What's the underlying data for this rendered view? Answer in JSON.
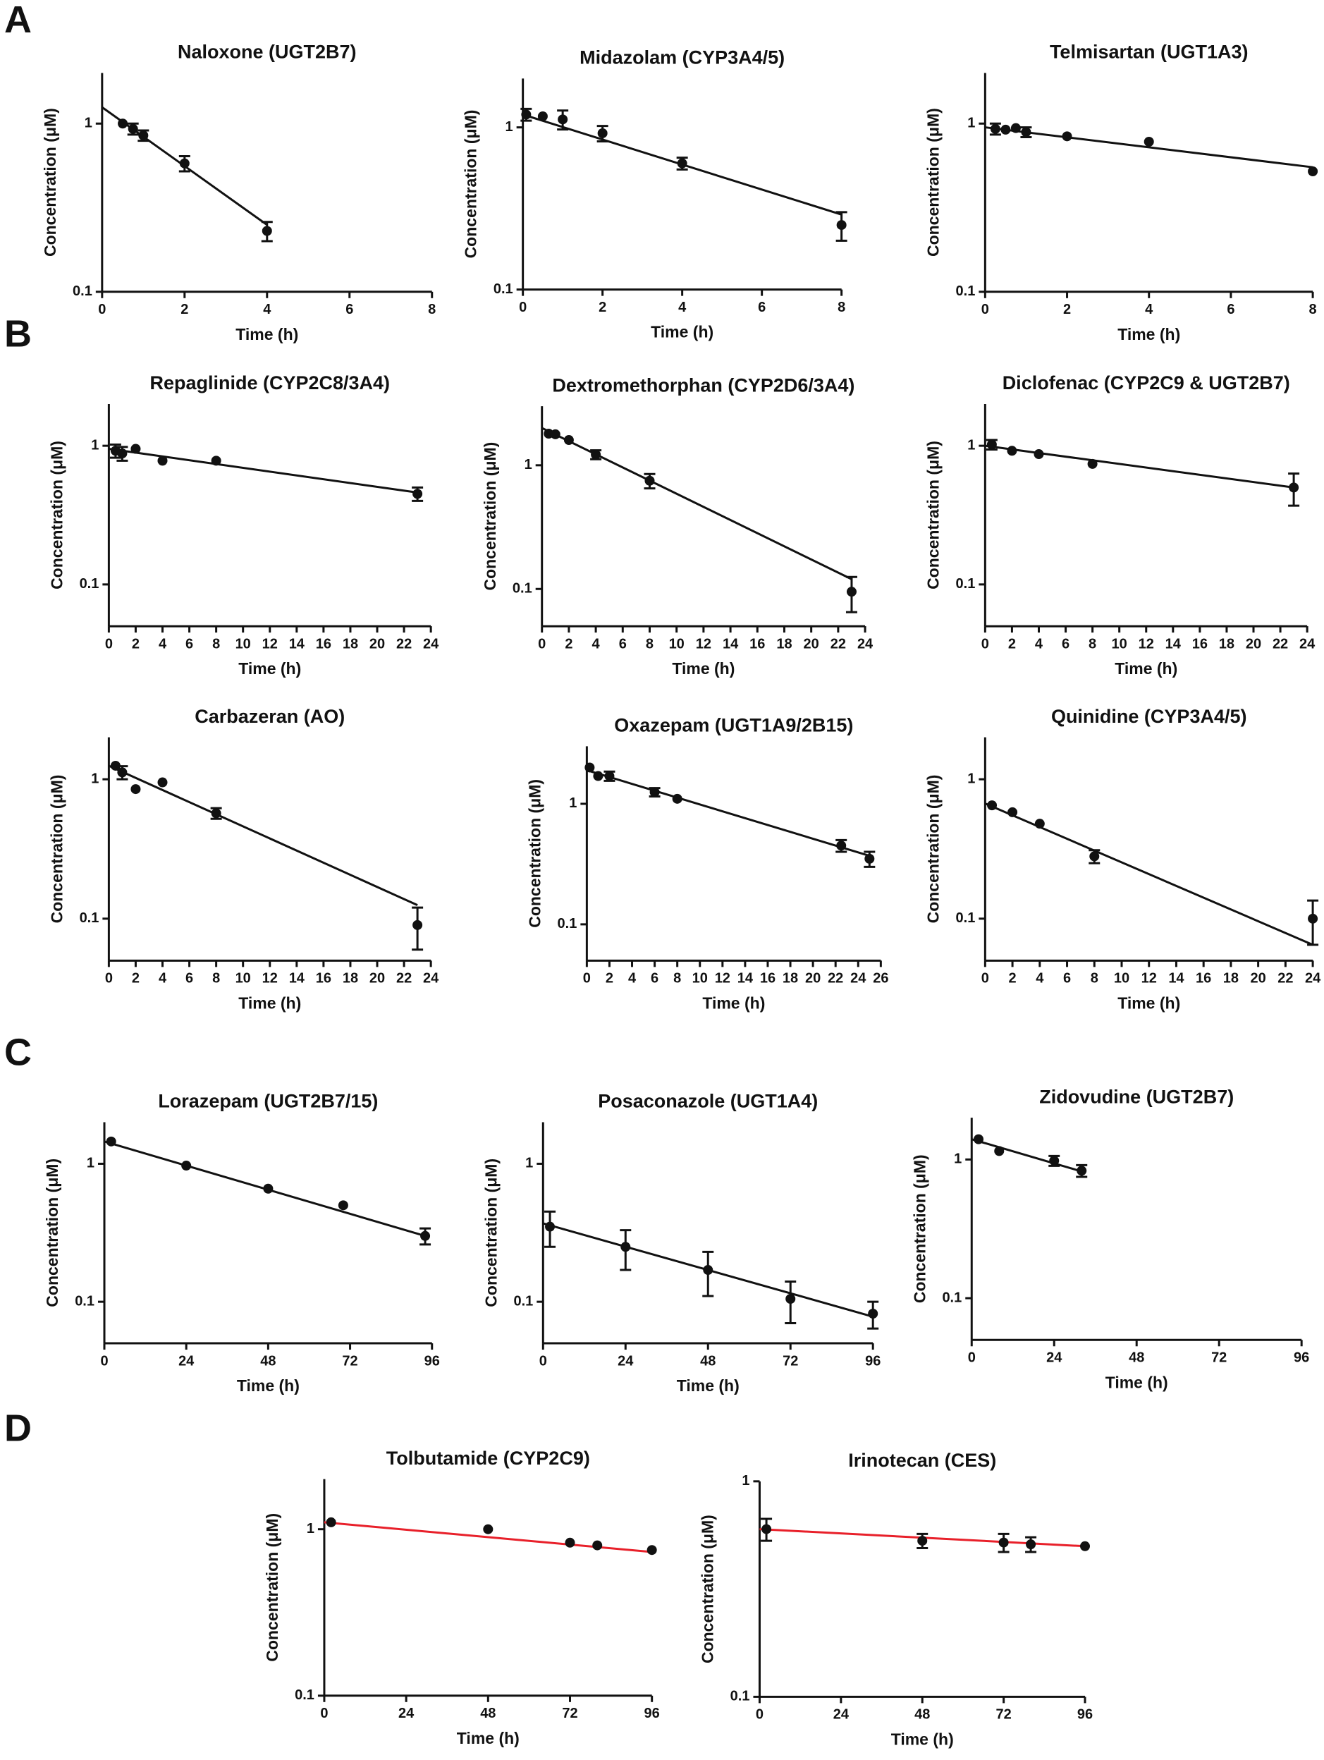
{
  "panel_labels": [
    "A",
    "B",
    "C",
    "D"
  ],
  "chart_data": [
    {
      "type": "scatter",
      "title": "Naloxone (UGT2B7)",
      "x_label": "Time (h)",
      "y_label": "Concentration (μM)",
      "y_scale": "log",
      "xlim": [
        0,
        8
      ],
      "xticks": [
        0,
        2,
        4,
        6,
        8
      ],
      "ylim": [
        0.1,
        2
      ],
      "yticks": [
        0.1,
        1
      ],
      "points": {
        "x": [
          0.5,
          0.75,
          1,
          2,
          4
        ],
        "values": [
          1.0,
          0.93,
          0.85,
          0.58,
          0.23
        ],
        "errors": [
          null,
          0.07,
          0.06,
          0.06,
          0.03
        ],
        "color": "#111111"
      },
      "fit": {
        "x": [
          0,
          4
        ],
        "values": [
          1.25,
          0.25
        ],
        "color": "#111111"
      }
    },
    {
      "type": "scatter",
      "title": "Midazolam (CYP3A4/5)",
      "x_label": "Time (h)",
      "y_label": "Concentration (μM)",
      "y_scale": "log",
      "xlim": [
        0,
        8
      ],
      "xticks": [
        0,
        2,
        4,
        6,
        8
      ],
      "ylim": [
        0.1,
        2
      ],
      "yticks": [
        0.1,
        1
      ],
      "points": {
        "x": [
          0.083,
          0.5,
          1,
          2,
          4,
          8
        ],
        "values": [
          1.2,
          1.17,
          1.12,
          0.92,
          0.6,
          0.25
        ],
        "errors": [
          0.1,
          null,
          0.15,
          0.1,
          0.05,
          0.05
        ],
        "color": "#111111"
      },
      "fit": {
        "x": [
          0,
          8
        ],
        "values": [
          1.2,
          0.29
        ],
        "color": "#111111"
      }
    },
    {
      "type": "scatter",
      "title": "Telmisartan (UGT1A3)",
      "x_label": "Time (h)",
      "y_label": "Concentration (μM)",
      "y_scale": "log",
      "xlim": [
        0,
        8
      ],
      "xticks": [
        0,
        2,
        4,
        6,
        8
      ],
      "ylim": [
        0.1,
        2
      ],
      "yticks": [
        0.1,
        1
      ],
      "points": {
        "x": [
          0.25,
          0.5,
          0.75,
          1,
          2,
          4,
          8
        ],
        "values": [
          0.93,
          0.92,
          0.94,
          0.89,
          0.84,
          0.78,
          0.52
        ],
        "errors": [
          0.07,
          null,
          null,
          0.06,
          null,
          null,
          null
        ],
        "color": "#111111"
      },
      "fit": {
        "x": [
          0,
          8
        ],
        "values": [
          0.95,
          0.55
        ],
        "color": "#111111"
      }
    },
    {
      "type": "scatter",
      "title": "Repaglinide (CYP2C8/3A4)",
      "x_label": "Time (h)",
      "y_label": "Concentration (μM)",
      "y_scale": "log",
      "xlim": [
        0,
        24
      ],
      "xticks": [
        0,
        2,
        4,
        6,
        8,
        10,
        12,
        14,
        16,
        18,
        20,
        22,
        24
      ],
      "ylim": [
        0.05,
        2
      ],
      "yticks": [
        0.1,
        1
      ],
      "points": {
        "x": [
          0.5,
          1,
          2,
          4,
          8,
          23
        ],
        "values": [
          0.92,
          0.88,
          0.95,
          0.78,
          0.78,
          0.45
        ],
        "errors": [
          0.1,
          0.1,
          null,
          null,
          null,
          0.05
        ],
        "color": "#111111"
      },
      "fit": {
        "x": [
          0,
          23
        ],
        "values": [
          0.95,
          0.46
        ],
        "color": "#111111"
      }
    },
    {
      "type": "scatter",
      "title": "Dextromethorphan (CYP2D6/3A4)",
      "x_label": "Time (h)",
      "y_label": "Concentration (μM)",
      "y_scale": "log",
      "xlim": [
        0,
        24
      ],
      "xticks": [
        0,
        2,
        4,
        6,
        8,
        10,
        12,
        14,
        16,
        18,
        20,
        22,
        24
      ],
      "ylim": [
        0.05,
        3
      ],
      "yticks": [
        0.1,
        1
      ],
      "points": {
        "x": [
          0.5,
          1,
          2,
          4,
          8,
          23
        ],
        "values": [
          1.8,
          1.78,
          1.6,
          1.22,
          0.75,
          0.095
        ],
        "errors": [
          null,
          null,
          null,
          0.1,
          0.1,
          0.03
        ],
        "color": "#111111"
      },
      "fit": {
        "x": [
          0,
          23
        ],
        "values": [
          2.0,
          0.12
        ],
        "color": "#111111"
      }
    },
    {
      "type": "scatter",
      "title": "Diclofenac (CYP2C9 & UGT2B7)",
      "x_label": "Time (h)",
      "y_label": "Concentration (μM)",
      "y_scale": "log",
      "xlim": [
        0,
        24
      ],
      "xticks": [
        0,
        2,
        4,
        6,
        8,
        10,
        12,
        14,
        16,
        18,
        20,
        22,
        24
      ],
      "ylim": [
        0.05,
        2
      ],
      "yticks": [
        0.1,
        1
      ],
      "points": {
        "x": [
          0.5,
          2,
          4,
          8,
          23
        ],
        "values": [
          1.02,
          0.92,
          0.87,
          0.74,
          0.5
        ],
        "errors": [
          0.08,
          null,
          null,
          null,
          0.13
        ],
        "color": "#111111"
      },
      "fit": {
        "x": [
          0,
          23
        ],
        "values": [
          1.0,
          0.5
        ],
        "color": "#111111"
      }
    },
    {
      "type": "scatter",
      "title": "Carbazeran (AO)",
      "x_label": "Time (h)",
      "y_label": "Concentration (μM)",
      "y_scale": "log",
      "xlim": [
        0,
        24
      ],
      "xticks": [
        0,
        2,
        4,
        6,
        8,
        10,
        12,
        14,
        16,
        18,
        20,
        22,
        24
      ],
      "ylim": [
        0.05,
        2
      ],
      "yticks": [
        0.1,
        1
      ],
      "points": {
        "x": [
          0.5,
          1,
          2,
          4,
          8,
          23
        ],
        "values": [
          1.25,
          1.12,
          0.85,
          0.95,
          0.57,
          0.09
        ],
        "errors": [
          null,
          0.12,
          null,
          null,
          0.05,
          0.03
        ],
        "color": "#111111"
      },
      "fit": {
        "x": [
          0,
          23
        ],
        "values": [
          1.25,
          0.125
        ],
        "color": "#111111"
      }
    },
    {
      "type": "scatter",
      "title": "Oxazepam (UGT1A9/2B15)",
      "x_label": "Time (h)",
      "y_label": "Concentration (μM)",
      "y_scale": "log",
      "xlim": [
        0,
        26
      ],
      "xticks": [
        0,
        2,
        4,
        6,
        8,
        10,
        12,
        14,
        16,
        18,
        20,
        22,
        24,
        26
      ],
      "ylim": [
        0.05,
        3
      ],
      "yticks": [
        0.1,
        1
      ],
      "points": {
        "x": [
          0.25,
          1,
          2,
          6,
          8,
          22.5,
          25
        ],
        "values": [
          2.0,
          1.7,
          1.7,
          1.25,
          1.1,
          0.45,
          0.35
        ],
        "errors": [
          null,
          null,
          0.15,
          0.1,
          null,
          0.05,
          0.05
        ],
        "color": "#111111"
      },
      "fit": {
        "x": [
          0,
          25
        ],
        "values": [
          1.9,
          0.37
        ],
        "color": "#111111"
      }
    },
    {
      "type": "scatter",
      "title": "Quinidine (CYP3A4/5)",
      "x_label": "Time (h)",
      "y_label": "Concentration (μM)",
      "y_scale": "log",
      "xlim": [
        0,
        24
      ],
      "xticks": [
        0,
        2,
        4,
        6,
        8,
        10,
        12,
        14,
        16,
        18,
        20,
        22,
        24
      ],
      "ylim": [
        0.05,
        2
      ],
      "yticks": [
        0.1,
        1
      ],
      "points": {
        "x": [
          0.5,
          2,
          4,
          8,
          24
        ],
        "values": [
          0.65,
          0.58,
          0.48,
          0.28,
          0.1
        ],
        "errors": [
          null,
          null,
          null,
          0.03,
          0.035
        ],
        "color": "#111111"
      },
      "fit": {
        "x": [
          0,
          24
        ],
        "values": [
          0.67,
          0.065
        ],
        "color": "#111111"
      }
    },
    {
      "type": "scatter",
      "title": "Lorazepam (UGT2B7/15)",
      "x_label": "Time (h)",
      "y_label": "Concentration (μM)",
      "y_scale": "log",
      "xlim": [
        0,
        96
      ],
      "xticks": [
        0,
        24,
        48,
        72,
        96
      ],
      "ylim": [
        0.05,
        2
      ],
      "yticks": [
        0.1,
        1
      ],
      "points": {
        "x": [
          2,
          24,
          48,
          70,
          94
        ],
        "values": [
          1.45,
          0.97,
          0.66,
          0.5,
          0.3
        ],
        "errors": [
          null,
          null,
          null,
          null,
          0.04
        ],
        "color": "#111111"
      },
      "fit": {
        "x": [
          0,
          94
        ],
        "values": [
          1.45,
          0.3
        ],
        "color": "#111111"
      }
    },
    {
      "type": "scatter",
      "title": "Posaconazole (UGT1A4)",
      "x_label": "Time (h)",
      "y_label": "Concentration (μM)",
      "y_scale": "log",
      "xlim": [
        0,
        96
      ],
      "xticks": [
        0,
        24,
        48,
        72,
        96
      ],
      "ylim": [
        0.05,
        2
      ],
      "yticks": [
        0.1,
        1
      ],
      "points": {
        "x": [
          2,
          24,
          48,
          72,
          96
        ],
        "values": [
          0.35,
          0.25,
          0.17,
          0.105,
          0.082
        ],
        "errors": [
          0.1,
          0.08,
          0.06,
          0.035,
          0.018
        ],
        "color": "#111111"
      },
      "fit": {
        "x": [
          0,
          96
        ],
        "values": [
          0.37,
          0.078
        ],
        "color": "#111111"
      }
    },
    {
      "type": "scatter",
      "title": "Zidovudine (UGT2B7)",
      "x_label": "Time (h)",
      "y_label": "Concentration (μM)",
      "y_scale": "log",
      "xlim": [
        0,
        96
      ],
      "xticks": [
        0,
        24,
        48,
        72,
        96
      ],
      "ylim": [
        0.05,
        2
      ],
      "yticks": [
        0.1,
        1
      ],
      "points": {
        "x": [
          2,
          8,
          24,
          32
        ],
        "values": [
          1.4,
          1.15,
          0.98,
          0.83
        ],
        "errors": [
          null,
          null,
          0.08,
          0.08
        ],
        "color": "#111111"
      },
      "fit": {
        "x": [
          0,
          32
        ],
        "values": [
          1.4,
          0.82
        ],
        "color": "#111111"
      }
    },
    {
      "type": "scatter",
      "title": "Tolbutamide (CYP2C9)",
      "x_label": "Time (h)",
      "y_label": "Concentration (μM)",
      "y_scale": "log",
      "xlim": [
        0,
        96
      ],
      "xticks": [
        0,
        24,
        48,
        72,
        96
      ],
      "ylim": [
        0.1,
        2
      ],
      "yticks": [
        0.1,
        1
      ],
      "points": {
        "x": [
          2,
          48,
          72,
          80,
          96
        ],
        "values": [
          1.1,
          1.0,
          0.83,
          0.8,
          0.75
        ],
        "errors": [
          null,
          null,
          null,
          null,
          null
        ],
        "color": "#111111"
      },
      "fit": {
        "x": [
          0,
          96
        ],
        "values": [
          1.1,
          0.73
        ],
        "color": "#e8202a"
      }
    },
    {
      "type": "scatter",
      "title": "Irinotecan (CES)",
      "x_label": "Time (h)",
      "y_label": "Concentration (μM)",
      "y_scale": "log",
      "xlim": [
        0,
        96
      ],
      "xticks": [
        0,
        24,
        48,
        72,
        96
      ],
      "ylim": [
        0.1,
        1
      ],
      "yticks": [
        0.1,
        1
      ],
      "points": {
        "x": [
          2,
          48,
          72,
          80,
          96
        ],
        "values": [
          0.6,
          0.53,
          0.52,
          0.51,
          0.5
        ],
        "errors": [
          0.07,
          0.04,
          0.05,
          0.04,
          null
        ],
        "color": "#111111"
      },
      "fit": {
        "x": [
          0,
          96
        ],
        "values": [
          0.6,
          0.5
        ],
        "color": "#e8202a"
      }
    }
  ]
}
